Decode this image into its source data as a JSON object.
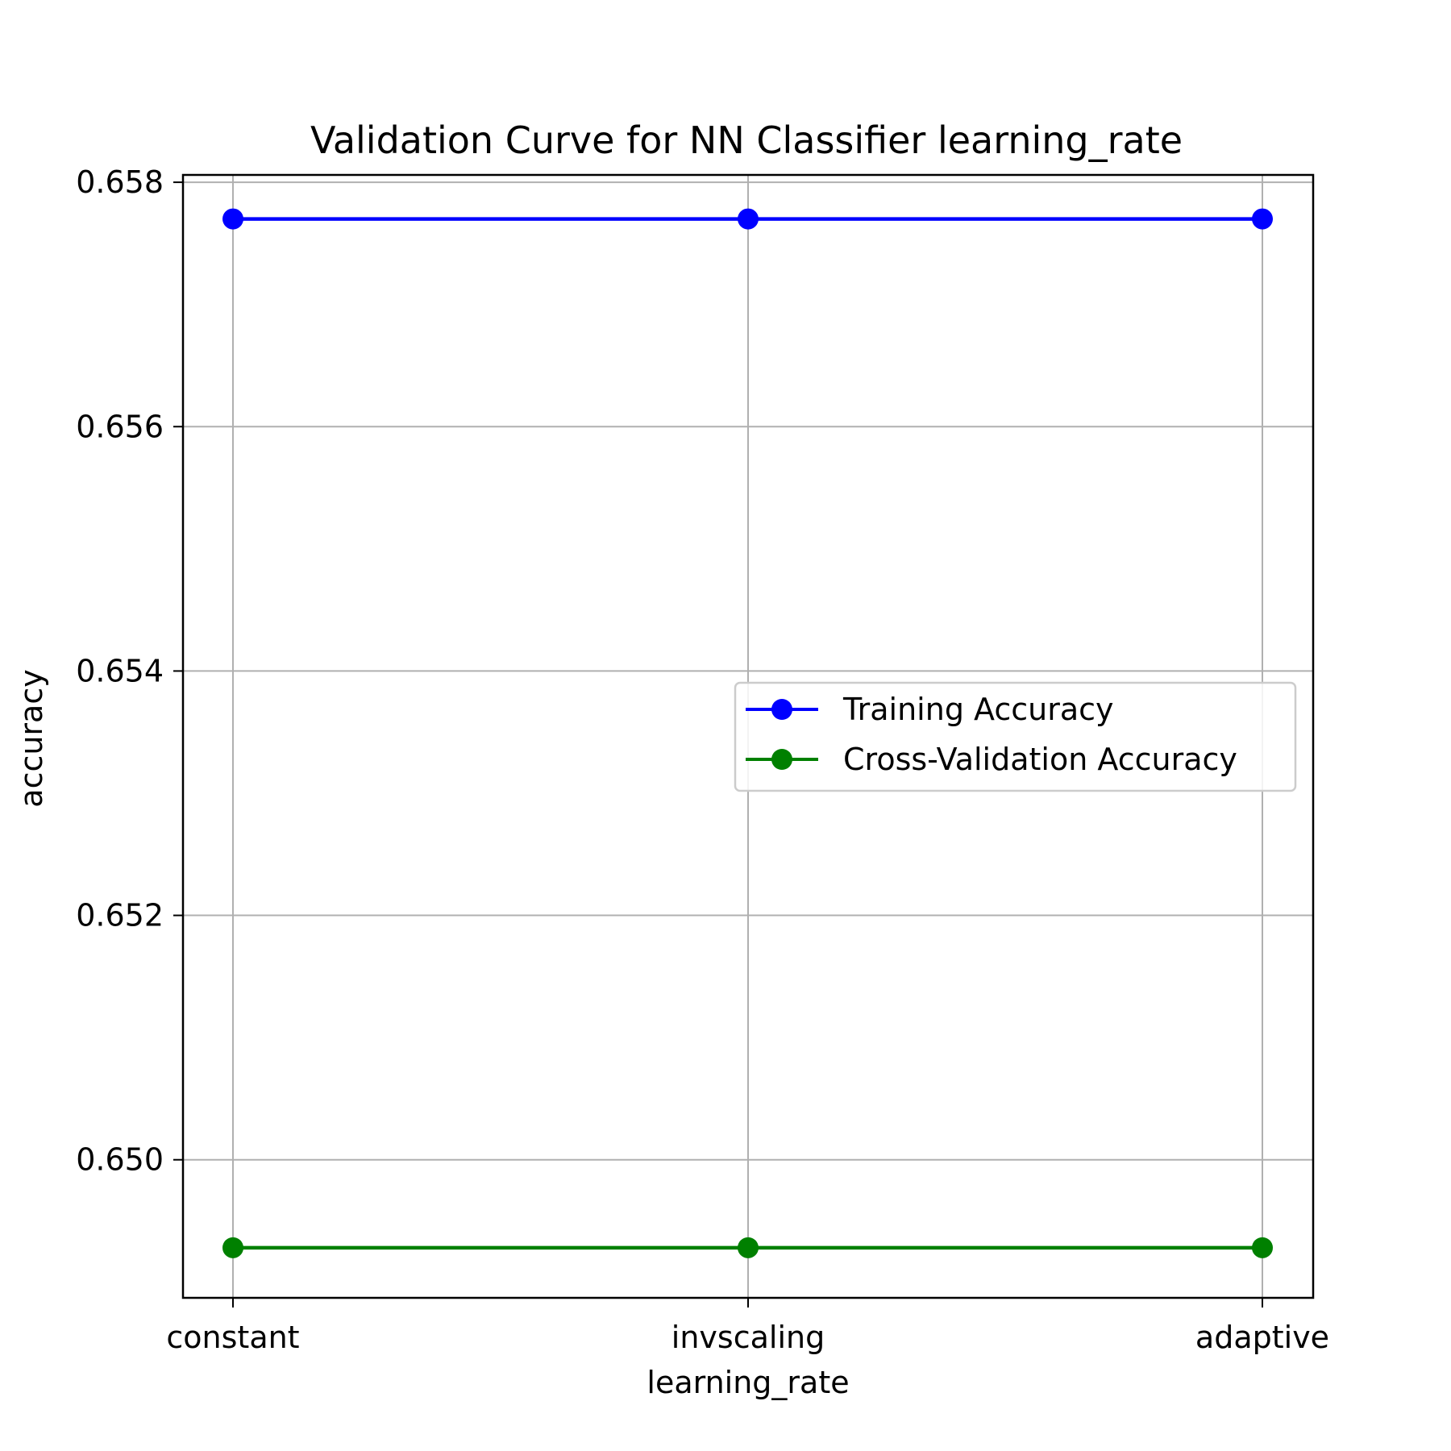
{
  "chart_data": {
    "type": "line",
    "title": "Validation Curve for NN Classifier learning_rate",
    "xlabel": "learning_rate",
    "ylabel": "accuracy",
    "categories": [
      "constant",
      "invscaling",
      "adaptive"
    ],
    "ylim": [
      0.64887,
      0.65806
    ],
    "yticks": [
      0.65,
      0.652,
      0.654,
      0.656,
      0.658
    ],
    "ytick_labels": [
      "0.650",
      "0.652",
      "0.654",
      "0.656",
      "0.658"
    ],
    "grid": true,
    "legend_position": "center-right",
    "series": [
      {
        "name": "Training Accuracy",
        "color": "#0000ff",
        "marker": "circle",
        "values": [
          0.6577,
          0.6577,
          0.6577
        ]
      },
      {
        "name": "Cross-Validation Accuracy",
        "color": "#008000",
        "marker": "circle",
        "values": [
          0.64928,
          0.64928,
          0.64928
        ]
      }
    ]
  }
}
